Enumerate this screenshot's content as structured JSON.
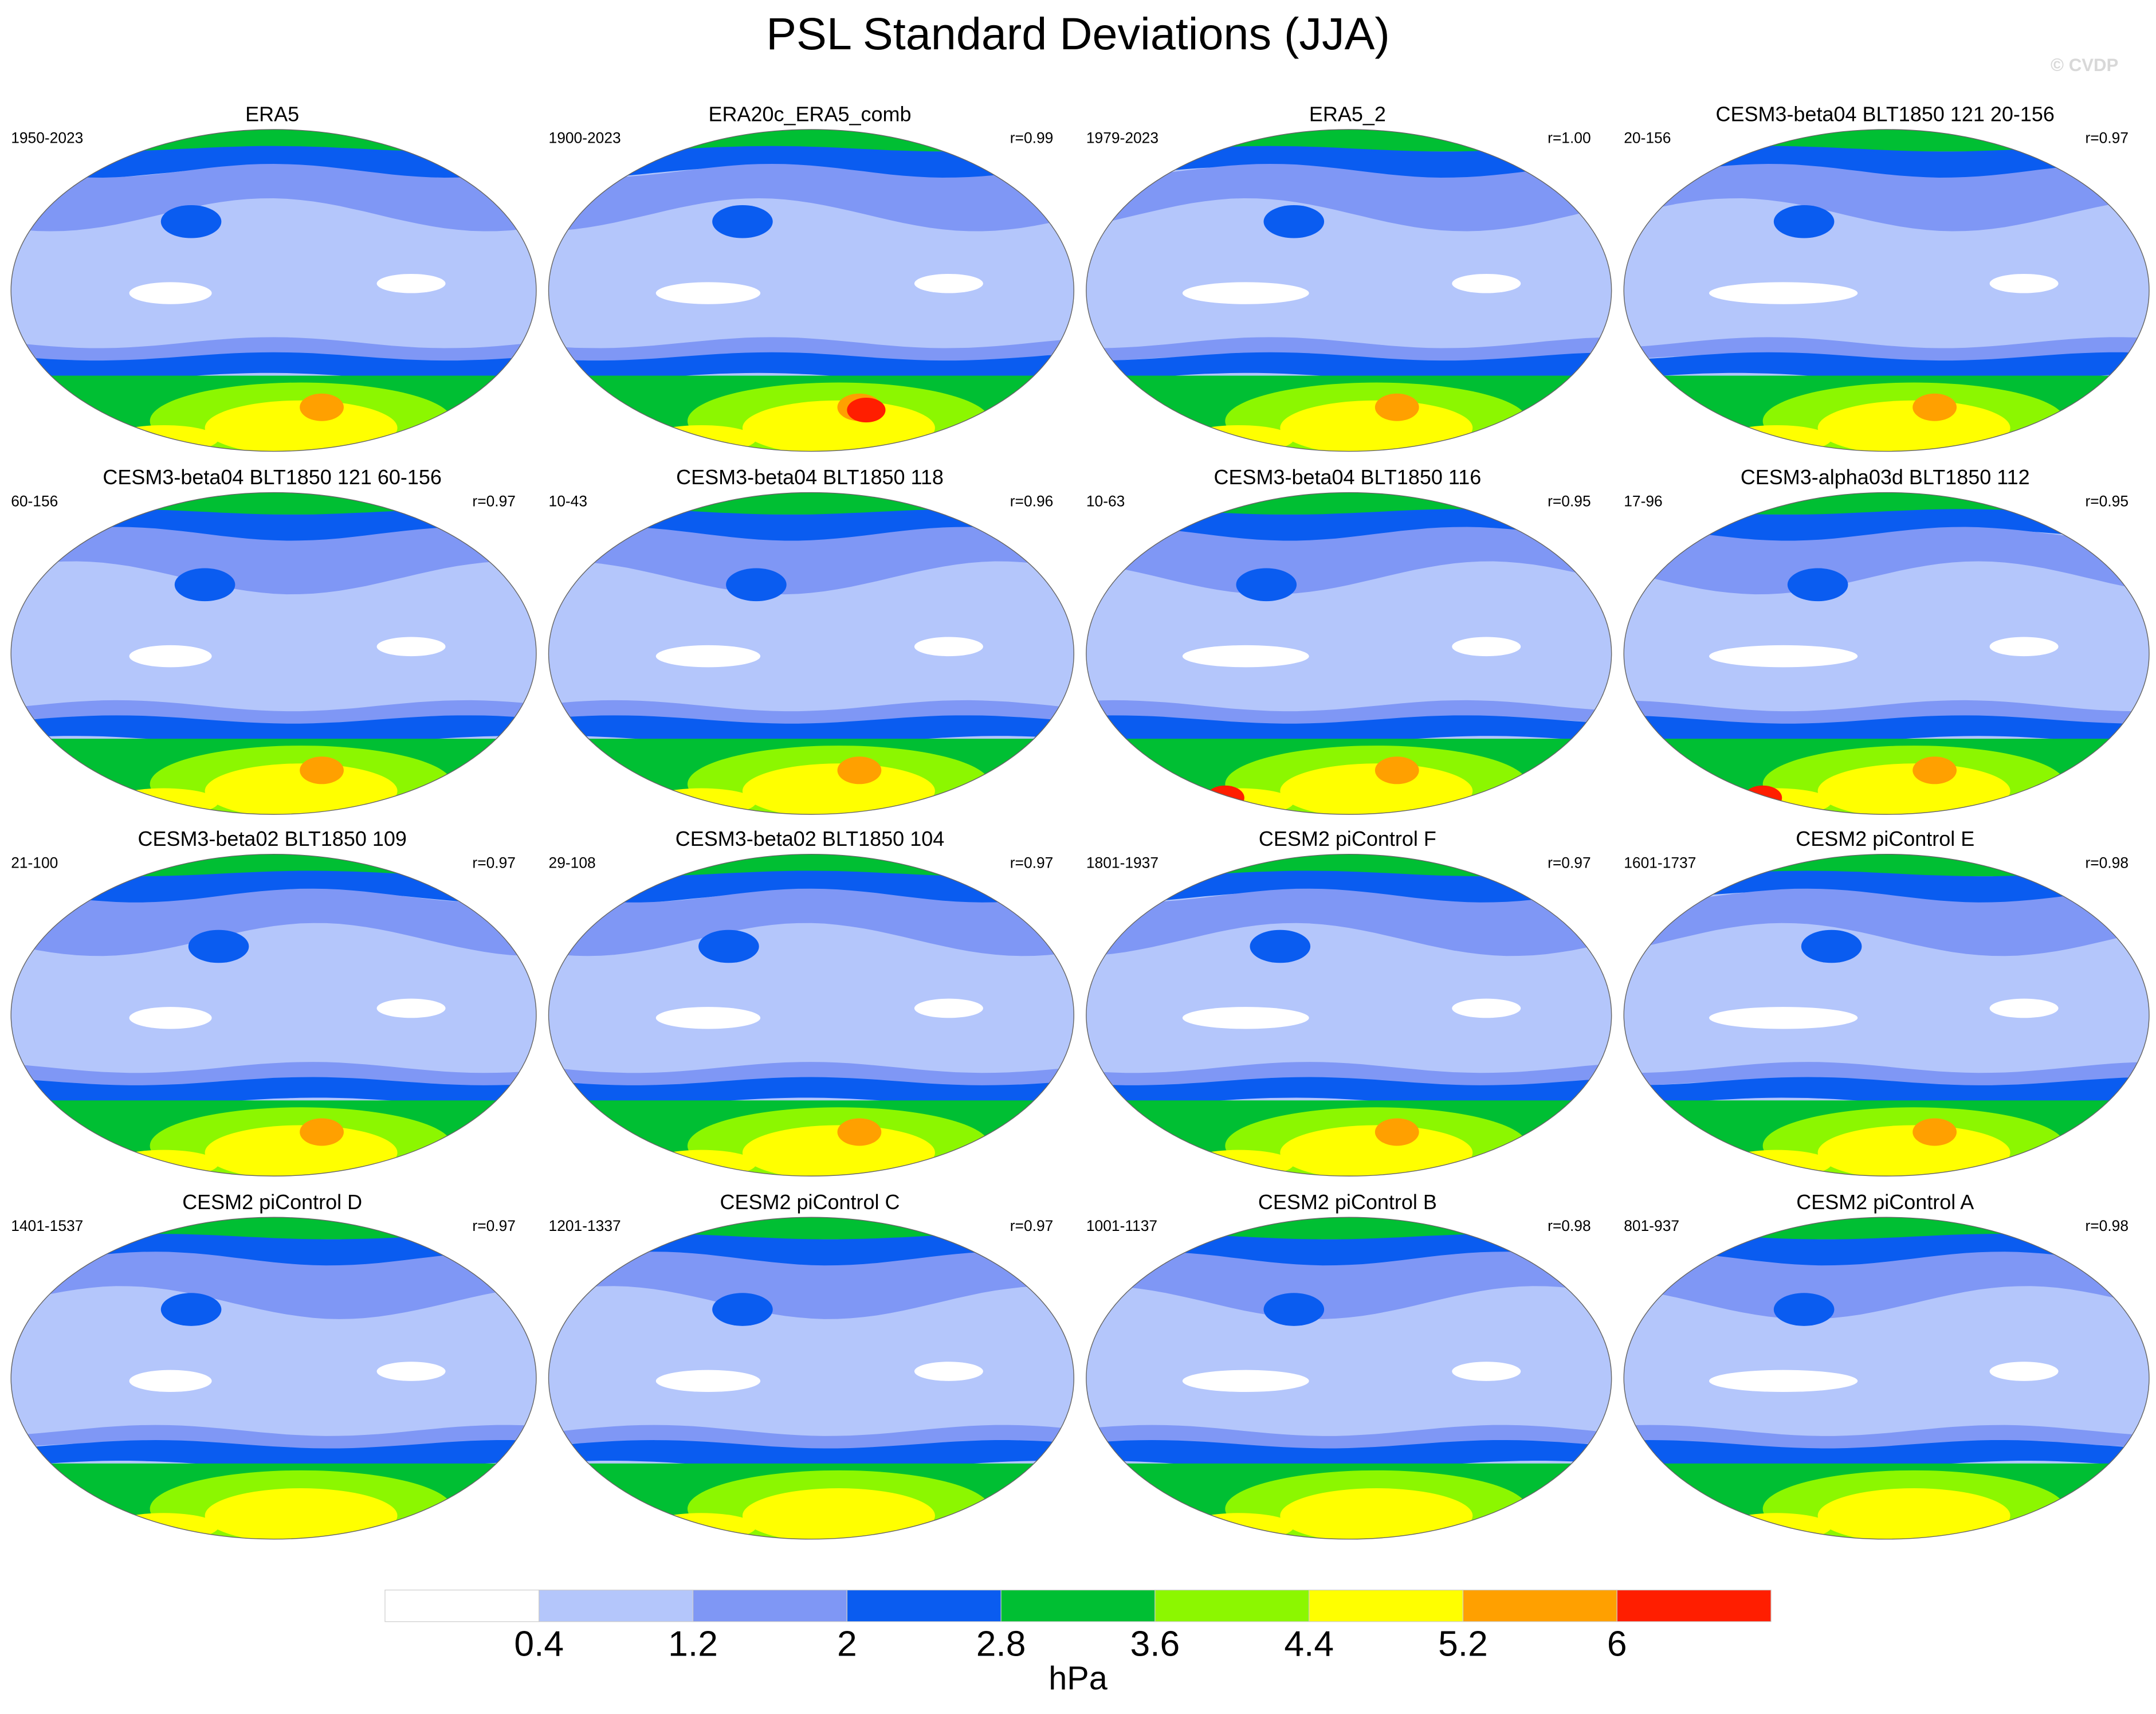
{
  "header": {
    "title": "PSL Standard Deviations (JJA)",
    "watermark": "© CVDP"
  },
  "panels": [
    {
      "title": "ERA5",
      "years": "1950-2023"
    },
    {
      "title": "ERA20c_ERA5_comb",
      "years": "1900-2023",
      "r": "r=0.99"
    },
    {
      "title": "ERA5_2",
      "years": "1979-2023",
      "r": "r=1.00"
    },
    {
      "title": "CESM3-beta04 BLT1850 121 20-156",
      "years": "20-156",
      "r": "r=0.97"
    },
    {
      "title": "CESM3-beta04 BLT1850 121 60-156",
      "years": "60-156",
      "r": "r=0.97"
    },
    {
      "title": "CESM3-beta04 BLT1850 118",
      "years": "10-43",
      "r": "r=0.96"
    },
    {
      "title": "CESM3-beta04 BLT1850 116",
      "years": "10-63",
      "r": "r=0.95"
    },
    {
      "title": "CESM3-alpha03d BLT1850 112",
      "years": "17-96",
      "r": "r=0.95"
    },
    {
      "title": "CESM3-beta02 BLT1850 109",
      "years": "21-100",
      "r": "r=0.97"
    },
    {
      "title": "CESM3-beta02 BLT1850 104",
      "years": "29-108",
      "r": "r=0.97"
    },
    {
      "title": "CESM2 piControl F",
      "years": "1801-1937",
      "r": "r=0.97"
    },
    {
      "title": "CESM2 piControl E",
      "years": "1601-1737",
      "r": "r=0.98"
    },
    {
      "title": "CESM2 piControl D",
      "years": "1401-1537",
      "r": "r=0.97"
    },
    {
      "title": "CESM2 piControl C",
      "years": "1201-1337",
      "r": "r=0.97"
    },
    {
      "title": "CESM2 piControl B",
      "years": "1001-1137",
      "r": "r=0.98"
    },
    {
      "title": "CESM2 piControl A",
      "years": "801-937",
      "r": "r=0.98"
    }
  ],
  "colorbar": {
    "levels": [
      0.4,
      1.2,
      2,
      2.8,
      3.6,
      4.4,
      5.2,
      6
    ],
    "colors": [
      "#ffffff",
      "#b4c6fb",
      "#7f97f5",
      "#0a5cf0",
      "#00bf33",
      "#8cf700",
      "#ffff00",
      "#ffa000",
      "#ff1e00"
    ],
    "unit": "hPa"
  }
}
